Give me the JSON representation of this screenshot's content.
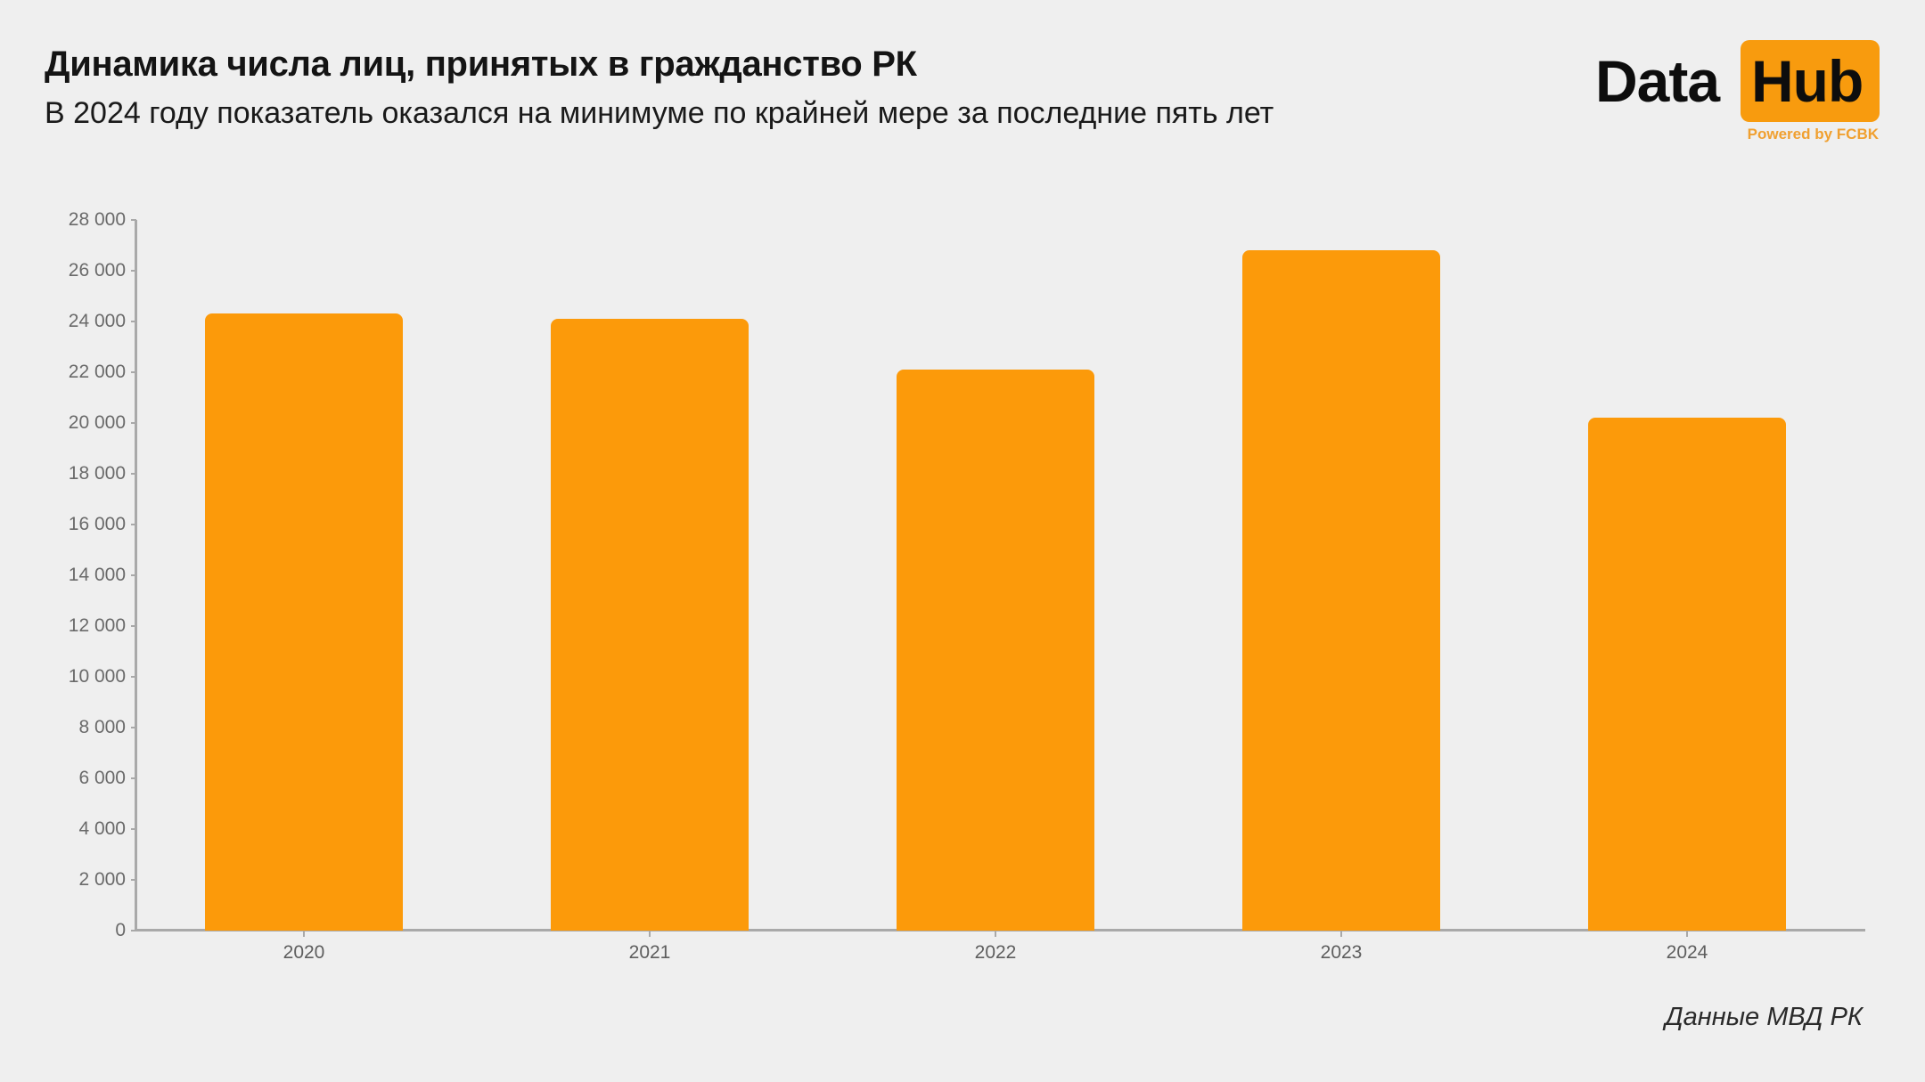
{
  "header": {
    "title": "Динамика числа лиц, принятых в гражданство РК",
    "subtitle": "В 2024 году показатель оказался на минимуме по крайней мере за последние пять лет"
  },
  "logo": {
    "data_text": "Data",
    "hub_text": "Hub",
    "powered_text": "Powered by FCBK"
  },
  "footer": {
    "source": "Данные МВД РК"
  },
  "colors": {
    "bar": "#fc9a0a",
    "background": "#efefef",
    "axis": "#a9a9a9",
    "logo_accent": "#f89b0e"
  },
  "chart_data": {
    "type": "bar",
    "title": "Динамика числа лиц, принятых в гражданство РК",
    "subtitle": "В 2024 году показатель оказался на минимуме по крайней мере за последние пять лет",
    "categories": [
      "2020",
      "2021",
      "2022",
      "2023",
      "2024"
    ],
    "values": [
      24300,
      24100,
      22100,
      26800,
      20200
    ],
    "xlabel": "",
    "ylabel": "",
    "ylim": [
      0,
      28000
    ],
    "yticks": [
      0,
      2000,
      4000,
      6000,
      8000,
      10000,
      12000,
      14000,
      16000,
      18000,
      20000,
      22000,
      24000,
      26000,
      28000
    ],
    "ytick_labels": [
      "0",
      "2 000",
      "4 000",
      "6 000",
      "8 000",
      "10 000",
      "12 000",
      "14 000",
      "16 000",
      "18 000",
      "20 000",
      "22 000",
      "24 000",
      "26 000",
      "28 000"
    ],
    "grid": false,
    "legend": null,
    "annotations": [
      "Данные МВД РК"
    ]
  }
}
